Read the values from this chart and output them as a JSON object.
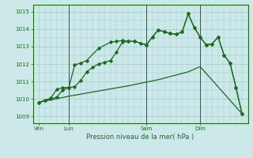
{
  "bg_color": "#cce8e8",
  "grid_color": "#99cccc",
  "line_color": "#1a6b1a",
  "title": "Pression niveau de la mer( hPa )",
  "yticks": [
    1009,
    1010,
    1011,
    1012,
    1013,
    1014,
    1015
  ],
  "ylim": [
    1008.6,
    1015.4
  ],
  "xtick_labels": [
    "Ven",
    "Lun",
    "Sam",
    "Dim"
  ],
  "xtick_positions": [
    0,
    2.5,
    9.0,
    13.5
  ],
  "xlim": [
    -0.5,
    17.5
  ],
  "vline_positions": [
    2.5,
    9.0,
    13.5
  ],
  "line1_x": [
    0,
    0.5,
    1.0,
    1.5,
    2.0,
    2.5,
    3.0,
    3.5,
    4.0,
    4.5,
    5.0,
    5.5,
    6.0,
    6.5,
    7.0,
    7.5,
    8.0,
    8.5,
    9.0,
    9.5,
    10.0,
    10.5,
    11.0,
    11.5,
    12.0,
    12.5,
    13.0,
    13.5,
    14.0,
    14.5,
    15.0,
    15.5,
    16.0,
    16.5,
    17.0
  ],
  "line1_y": [
    1009.8,
    1009.9,
    1010.0,
    1010.1,
    1010.5,
    1010.65,
    1010.7,
    1011.05,
    1011.55,
    1011.8,
    1012.0,
    1012.1,
    1012.2,
    1012.7,
    1013.25,
    1013.3,
    1013.3,
    1013.2,
    1013.1,
    1013.55,
    1013.95,
    1013.85,
    1013.75,
    1013.7,
    1013.85,
    1014.88,
    1014.1,
    1013.55,
    1013.1,
    1013.15,
    1013.55,
    1012.5,
    1012.05,
    1010.65,
    1009.15
  ],
  "line2_x": [
    0,
    0.5,
    1.0,
    1.5,
    2.0,
    2.5,
    3.0,
    3.5,
    4.0,
    5.0,
    6.0,
    6.5,
    7.0,
    7.5,
    8.0,
    9.0,
    9.5,
    10.0,
    10.5,
    11.0,
    11.5,
    12.0,
    12.5,
    13.0,
    13.5,
    14.0,
    14.5,
    15.0,
    15.5,
    16.0,
    16.5,
    17.0
  ],
  "line2_y": [
    1009.8,
    1009.9,
    1010.05,
    1010.55,
    1010.65,
    1010.65,
    1011.95,
    1012.05,
    1012.2,
    1012.9,
    1013.25,
    1013.3,
    1013.35,
    1013.3,
    1013.3,
    1013.1,
    1013.55,
    1013.95,
    1013.85,
    1013.75,
    1013.7,
    1013.85,
    1014.88,
    1014.1,
    1013.55,
    1013.1,
    1013.15,
    1013.55,
    1012.5,
    1012.05,
    1010.65,
    1009.15
  ],
  "line3_x": [
    0,
    2.5,
    5.0,
    7.5,
    10.0,
    12.5,
    13.5,
    17.0
  ],
  "line3_y": [
    1009.8,
    1010.15,
    1010.45,
    1010.75,
    1011.1,
    1011.55,
    1011.85,
    1009.15
  ]
}
